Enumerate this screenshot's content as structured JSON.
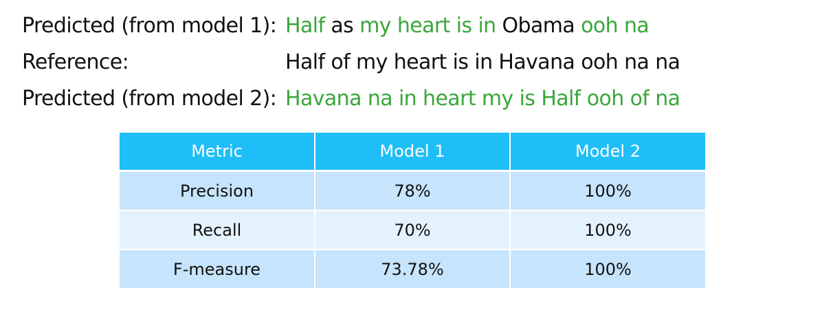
{
  "sentences": [
    {
      "label": "Predicted (from model 1):",
      "segments": [
        {
          "text": "Half",
          "match": true
        },
        {
          "text": " as ",
          "match": false
        },
        {
          "text": "my heart is in",
          "match": true
        },
        {
          "text": " Obama ",
          "match": false
        },
        {
          "text": "ooh na",
          "match": true
        }
      ]
    },
    {
      "label": "Reference:",
      "segments": [
        {
          "text": "Half of my heart is in Havana ooh na na",
          "match": false
        }
      ]
    },
    {
      "label": "Predicted (from model 2):",
      "segments": [
        {
          "text": "Havana na in heart my is Half ooh of na",
          "match": true
        }
      ]
    }
  ],
  "colors": {
    "match_text": "#3aa63a",
    "plain_text": "#111111",
    "header_bg": "#1fbef6",
    "row_odd_bg": "#c6e4fb",
    "row_even_bg": "#e4f2fd"
  },
  "table": {
    "headers": [
      "Metric",
      "Model 1",
      "Model 2"
    ],
    "rows": [
      [
        "Precision",
        "78%",
        "100%"
      ],
      [
        "Recall",
        "70%",
        "100%"
      ],
      [
        "F-measure",
        "73.78%",
        "100%"
      ]
    ]
  }
}
